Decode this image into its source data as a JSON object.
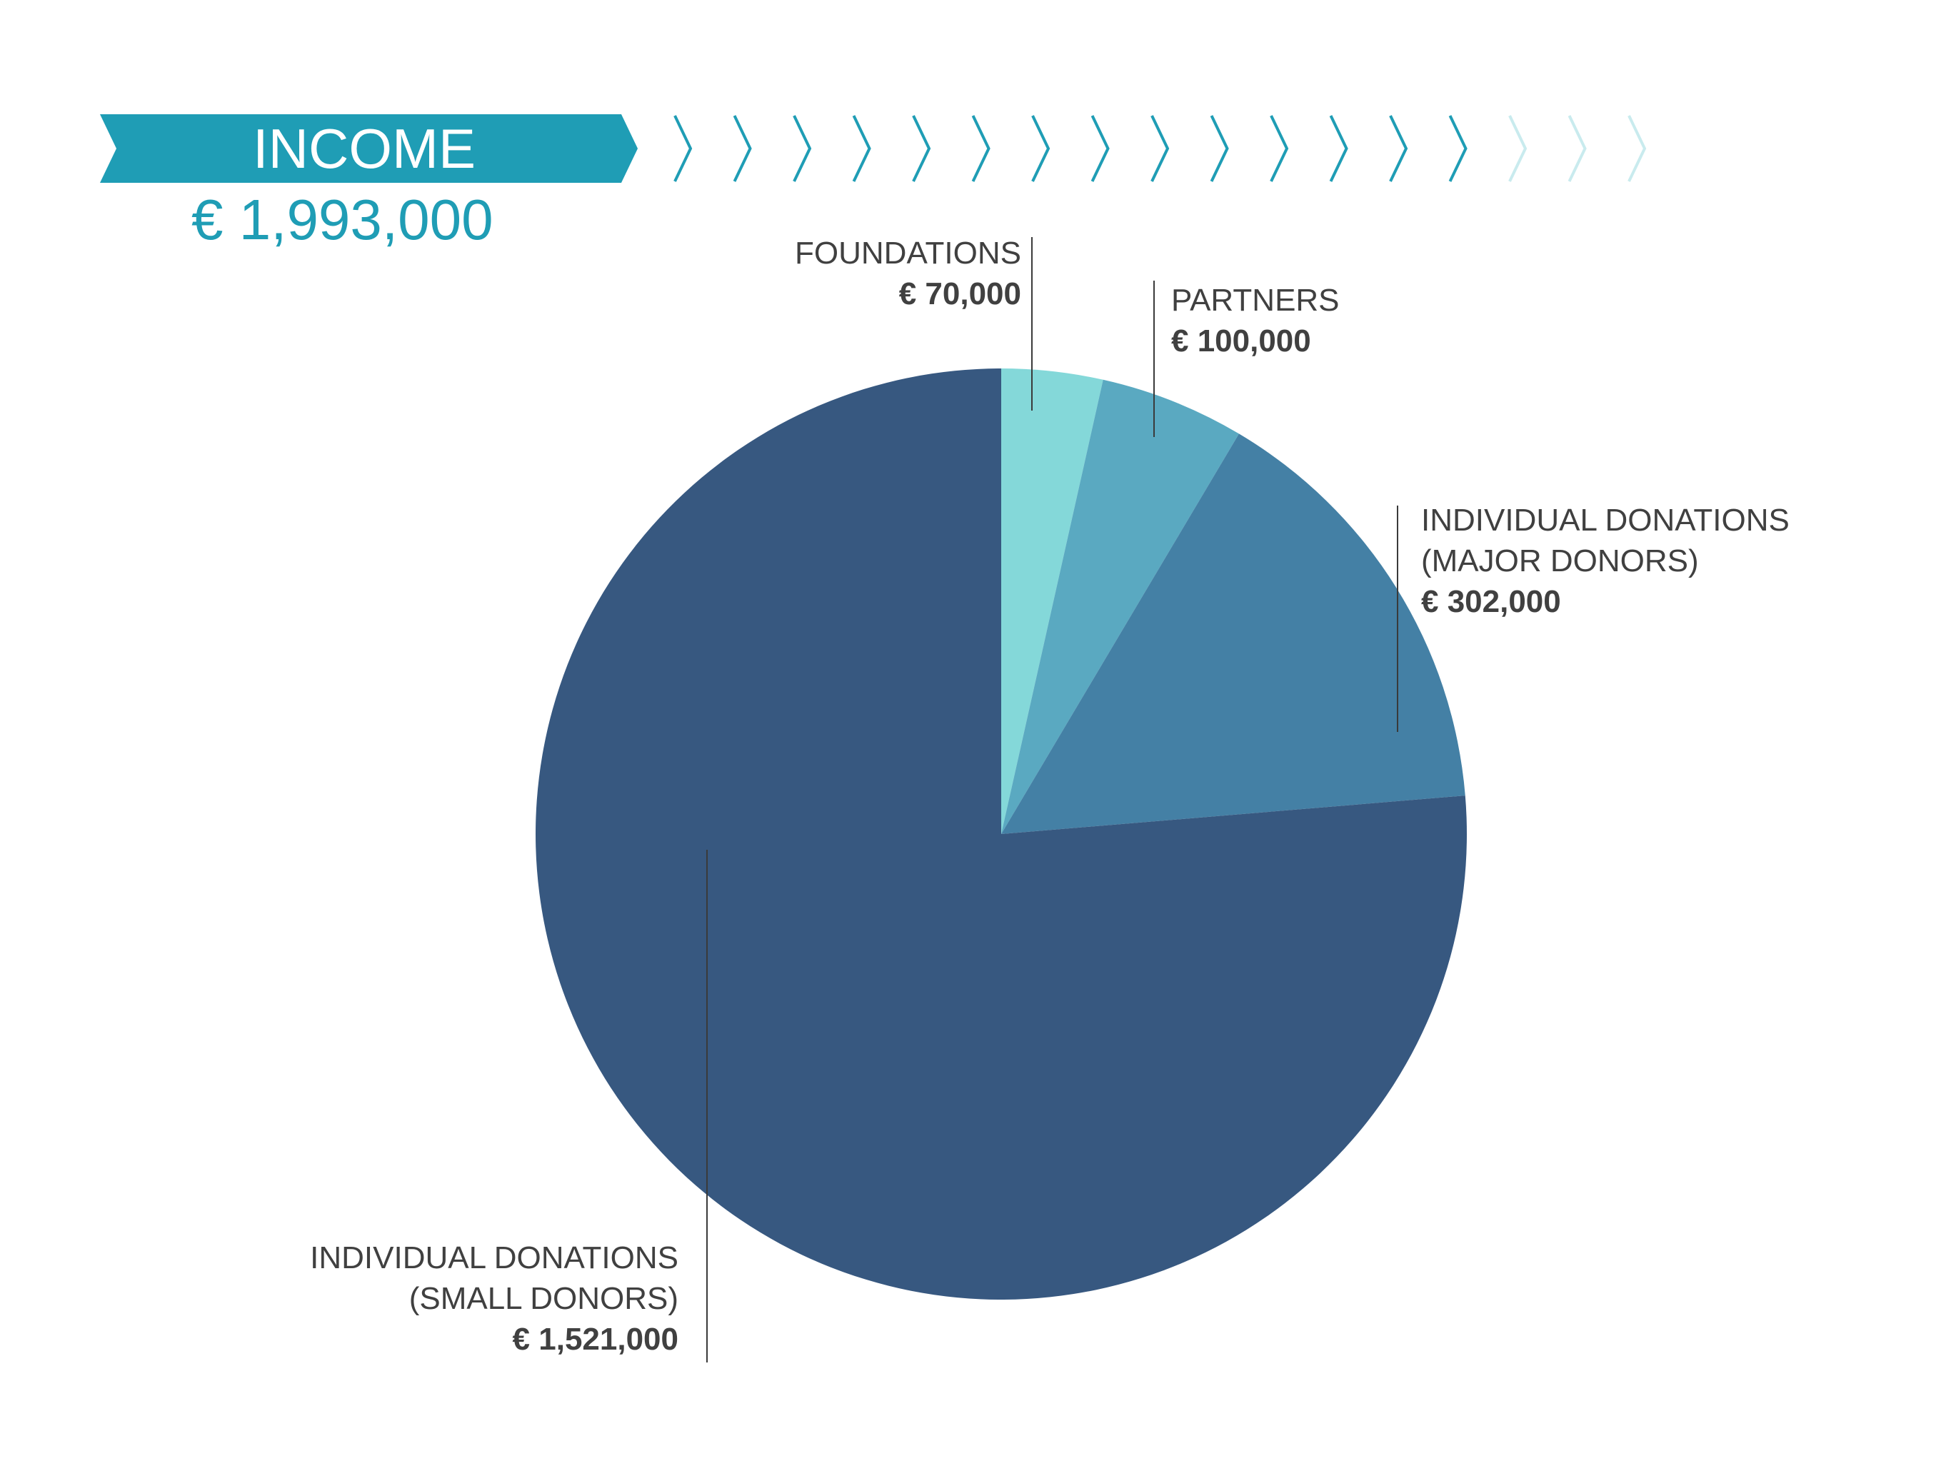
{
  "header": {
    "title": "INCOME",
    "total_amount": "€ 1,993,000",
    "colors": {
      "banner": "#1f9db5",
      "chevron": "#1f9db5",
      "chevron_faded": "#c9ebee"
    }
  },
  "chart_data": {
    "type": "pie",
    "title": "INCOME",
    "total": 1993000,
    "currency": "€",
    "start_angle": "12 o'clock",
    "direction": "clockwise",
    "slices": [
      {
        "label": "FOUNDATIONS",
        "value": 70000,
        "value_label": "€ 70,000",
        "color": "#84d8d9"
      },
      {
        "label": "PARTNERS",
        "value": 100000,
        "value_label": "€ 100,000",
        "color": "#5aa9c1"
      },
      {
        "label": "INDIVIDUAL DONATIONS (MAJOR DONORS)",
        "label_line1": "INDIVIDUAL DONATIONS",
        "label_line2": "(MAJOR DONORS)",
        "value": 302000,
        "value_label": "€ 302,000",
        "color": "#4480a5"
      },
      {
        "label": "INDIVIDUAL DONATIONS (SMALL DONORS)",
        "label_line1": "INDIVIDUAL DONATIONS",
        "label_line2": "(SMALL DONORS)",
        "value": 1521000,
        "value_label": "€ 1,521,000",
        "color": "#375880"
      }
    ]
  }
}
